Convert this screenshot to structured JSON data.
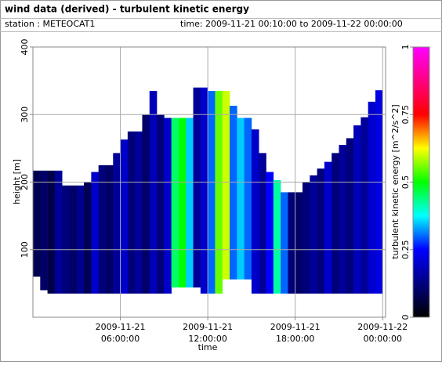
{
  "header": {
    "title": "wind data (derived) - turbulent kinetic energy",
    "station": "station : METEOCAT1",
    "time": "time: 2009-11-21 00:10:00 to 2009-11-22 00:00:00"
  },
  "chart_data": {
    "type": "heatmap",
    "xlabel": "time",
    "ylabel": "height [m]",
    "colorbar_label": "turbulent kinetic energy [m^2/s^2]",
    "x": [
      0.25,
      0.75,
      1.25,
      1.75,
      2.25,
      2.75,
      3.25,
      3.75,
      4.25,
      4.75,
      5.25,
      5.75,
      6.25,
      6.75,
      7.25,
      7.75,
      8.25,
      8.75,
      9.25,
      9.75,
      10.25,
      10.75,
      11.25,
      11.75,
      12.25,
      12.75,
      13.25,
      13.75,
      14.25,
      14.75,
      15.25,
      15.75,
      16.25,
      16.75,
      17.25,
      17.75,
      18.25,
      18.75,
      19.25,
      19.75,
      20.25,
      20.75,
      21.25,
      21.75,
      22.25,
      22.75,
      23.25,
      23.75
    ],
    "bottom": [
      60,
      40,
      35,
      35,
      35,
      35,
      35,
      35,
      35,
      35,
      35,
      35,
      35,
      35,
      35,
      35,
      35,
      35,
      35,
      44,
      44,
      44,
      44,
      35,
      35,
      35,
      56,
      56,
      56,
      56,
      35,
      35,
      35,
      35,
      35,
      35,
      35,
      35,
      35,
      35,
      35,
      35,
      35,
      35,
      35,
      35,
      35,
      35
    ],
    "top": [
      217,
      217,
      217,
      217,
      195,
      195,
      195,
      200,
      215,
      225,
      225,
      243,
      263,
      275,
      275,
      300,
      335,
      300,
      295,
      295,
      295,
      295,
      340,
      340,
      335,
      335,
      335,
      313,
      295,
      295,
      278,
      243,
      215,
      203,
      185,
      185,
      185,
      200,
      210,
      220,
      230,
      243,
      255,
      265,
      284,
      296,
      319,
      336
    ],
    "values": [
      0.08,
      0.1,
      0.07,
      0.15,
      0.12,
      0.1,
      0.14,
      0.08,
      0.2,
      0.12,
      0.1,
      0.15,
      0.2,
      0.12,
      0.15,
      0.1,
      0.18,
      0.12,
      0.2,
      0.45,
      0.5,
      0.35,
      0.15,
      0.2,
      0.3,
      0.55,
      0.6,
      0.3,
      0.35,
      0.3,
      0.2,
      0.15,
      0.25,
      0.42,
      0.3,
      0.12,
      0.1,
      0.12,
      0.15,
      0.12,
      0.2,
      0.12,
      0.15,
      0.12,
      0.18,
      0.15,
      0.2,
      0.22
    ],
    "xlim": [
      0,
      24.2
    ],
    "xticks": [
      {
        "value": 6,
        "label": "2009-11-21 06:00:00"
      },
      {
        "value": 12,
        "label": "2009-11-21 12:00:00"
      },
      {
        "value": 18,
        "label": "2009-11-21 18:00:00"
      },
      {
        "value": 24,
        "label": "2009-11-22 00:00:00"
      }
    ],
    "ylim": [
      0,
      400
    ],
    "yticks": [
      100,
      200,
      300,
      400
    ],
    "clim": [
      0,
      1
    ],
    "cticks": [
      0,
      0.25,
      0.5,
      0.75,
      1
    ],
    "colormap": [
      "#000000",
      "#000080",
      "#0000ff",
      "#00ffff",
      "#00ff00",
      "#ffff00",
      "#ff0000",
      "#ff0080",
      "#ff00ff"
    ],
    "grid": true
  }
}
